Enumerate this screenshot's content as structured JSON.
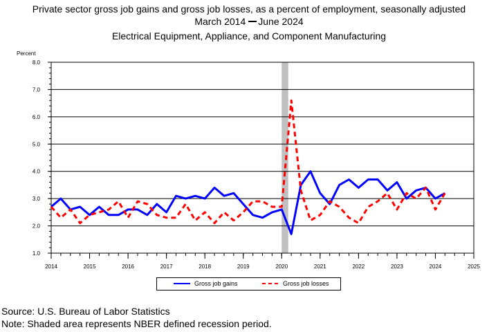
{
  "title": {
    "line1": "Private sector gross job gains and gross job losses, as a percent of employment, seasonally adjusted",
    "line2_start": "March 2014",
    "line2_end": "June 2024",
    "line3": "Electrical Equipment, Appliance, and Component Manufacturing"
  },
  "footer": {
    "source": "Source: U.S. Bureau of Labor Statistics",
    "note": "Note: Shaded area represents NBER defined recession period."
  },
  "chart_data": {
    "type": "line",
    "ylabel": "Percent",
    "xlabel": "",
    "ylim": [
      1.0,
      8.0
    ],
    "xlim": [
      2014,
      2025
    ],
    "y_ticks": [
      "1.0",
      "2.0",
      "3.0",
      "4.0",
      "5.0",
      "6.0",
      "7.0",
      "8.0"
    ],
    "x_ticks": [
      "2014",
      "2015",
      "2016",
      "2017",
      "2018",
      "2019",
      "2020",
      "2021",
      "2022",
      "2023",
      "2024",
      "2025"
    ],
    "grid": true,
    "legend_position": "bottom",
    "recession": [
      2020.0,
      2020.17
    ],
    "series": [
      {
        "name": "Gross job gains",
        "color": "#0000ff",
        "style": "solid",
        "x": [
          2014.0,
          2014.25,
          2014.5,
          2014.75,
          2015.0,
          2015.25,
          2015.5,
          2015.75,
          2016.0,
          2016.25,
          2016.5,
          2016.75,
          2017.0,
          2017.25,
          2017.5,
          2017.75,
          2018.0,
          2018.25,
          2018.5,
          2018.75,
          2019.0,
          2019.25,
          2019.5,
          2019.75,
          2020.0,
          2020.25,
          2020.5,
          2020.75,
          2021.0,
          2021.25,
          2021.5,
          2021.75,
          2022.0,
          2022.25,
          2022.5,
          2022.75,
          2023.0,
          2023.25,
          2023.5,
          2023.75,
          2024.0,
          2024.25
        ],
        "values": [
          2.7,
          3.0,
          2.6,
          2.7,
          2.4,
          2.7,
          2.4,
          2.4,
          2.6,
          2.6,
          2.4,
          2.8,
          2.5,
          3.1,
          3.0,
          3.1,
          3.0,
          3.4,
          3.1,
          3.2,
          2.8,
          2.4,
          2.3,
          2.5,
          2.6,
          1.7,
          3.5,
          4.0,
          3.2,
          2.8,
          3.5,
          3.7,
          3.4,
          3.7,
          3.7,
          3.3,
          3.6,
          3.0,
          3.3,
          3.4,
          3.0,
          3.2
        ]
      },
      {
        "name": "Gross job losses",
        "color": "#ff0000",
        "style": "dashed",
        "x": [
          2014.0,
          2014.25,
          2014.5,
          2014.75,
          2015.0,
          2015.25,
          2015.5,
          2015.75,
          2016.0,
          2016.25,
          2016.5,
          2016.75,
          2017.0,
          2017.25,
          2017.5,
          2017.75,
          2018.0,
          2018.25,
          2018.5,
          2018.75,
          2019.0,
          2019.25,
          2019.5,
          2019.75,
          2020.0,
          2020.25,
          2020.5,
          2020.75,
          2021.0,
          2021.25,
          2021.5,
          2021.75,
          2022.0,
          2022.25,
          2022.5,
          2022.75,
          2023.0,
          2023.25,
          2023.5,
          2023.75,
          2024.0,
          2024.25
        ],
        "values": [
          2.7,
          2.3,
          2.6,
          2.1,
          2.4,
          2.5,
          2.6,
          2.9,
          2.3,
          2.9,
          2.8,
          2.4,
          2.3,
          2.3,
          2.8,
          2.2,
          2.5,
          2.1,
          2.5,
          2.2,
          2.5,
          2.9,
          2.9,
          2.7,
          2.7,
          6.6,
          3.3,
          2.2,
          2.4,
          2.9,
          2.7,
          2.3,
          2.1,
          2.7,
          2.9,
          3.2,
          2.6,
          3.2,
          3.0,
          3.4,
          2.6,
          3.2
        ]
      }
    ]
  }
}
